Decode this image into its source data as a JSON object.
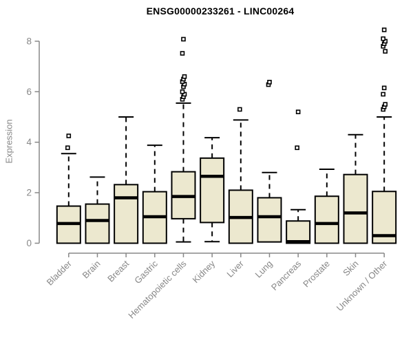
{
  "chart_data": {
    "type": "boxplot",
    "title": "ENSG00000233261 - LINC00264",
    "xlabel": "",
    "ylabel": "Expression",
    "ylim": [
      0,
      8.5
    ],
    "yticks": [
      "0",
      "2",
      "4",
      "6",
      "8"
    ],
    "grid": false,
    "legend": "none",
    "colors": {
      "box_fill": "#ece8cf",
      "box_stroke": "#000000",
      "axis": "#878787",
      "title": "#000000"
    },
    "categories": [
      "Bladder",
      "Brain",
      "Breast",
      "Gastric",
      "Hematopoietic cells",
      "Kidney",
      "Liver",
      "Lung",
      "Pancreas",
      "Prostate",
      "Skin",
      "Unknown / Other"
    ],
    "boxes": [
      {
        "category": "Bladder",
        "low": 0,
        "q1": 0,
        "median": 0.78,
        "q3": 1.47,
        "high": 3.55,
        "outliers": [
          3.78,
          4.25
        ]
      },
      {
        "category": "Brain",
        "low": 0,
        "q1": 0,
        "median": 0.9,
        "q3": 1.55,
        "high": 2.62,
        "outliers": []
      },
      {
        "category": "Breast",
        "low": 0,
        "q1": 0,
        "median": 1.8,
        "q3": 2.32,
        "high": 5.0,
        "outliers": []
      },
      {
        "category": "Gastric",
        "low": 0,
        "q1": 0,
        "median": 1.05,
        "q3": 2.04,
        "high": 3.88,
        "outliers": []
      },
      {
        "category": "Hematopoietic cells",
        "low": 0.05,
        "q1": 0.97,
        "median": 1.85,
        "q3": 2.83,
        "high": 5.55,
        "outliers": [
          5.7,
          5.8,
          5.9,
          6.0,
          6.2,
          6.3,
          6.4,
          6.5,
          6.6,
          7.52,
          8.08
        ]
      },
      {
        "category": "Kidney",
        "low": 0.06,
        "q1": 0.82,
        "median": 2.65,
        "q3": 3.37,
        "high": 4.18,
        "outliers": []
      },
      {
        "category": "Liver",
        "low": 0,
        "q1": 0,
        "median": 1.02,
        "q3": 2.1,
        "high": 4.88,
        "outliers": [
          5.3
        ]
      },
      {
        "category": "Lung",
        "low": 0.05,
        "q1": 0.05,
        "median": 1.05,
        "q3": 1.8,
        "high": 2.8,
        "outliers": [
          6.28,
          6.38
        ]
      },
      {
        "category": "Pancreas",
        "low": 0,
        "q1": 0,
        "median": 0.06,
        "q3": 0.88,
        "high": 1.33,
        "outliers": [
          3.78,
          5.2
        ]
      },
      {
        "category": "Prostate",
        "low": 0,
        "q1": 0,
        "median": 0.78,
        "q3": 1.86,
        "high": 2.93,
        "outliers": []
      },
      {
        "category": "Skin",
        "low": 0,
        "q1": 0,
        "median": 1.2,
        "q3": 2.72,
        "high": 4.3,
        "outliers": []
      },
      {
        "category": "Unknown / Other",
        "low": 0,
        "q1": 0,
        "median": 0.3,
        "q3": 2.05,
        "high": 5.0,
        "outliers": [
          5.3,
          5.4,
          5.5,
          5.9,
          6.15,
          7.6,
          7.8,
          7.9,
          8.0,
          8.1,
          8.45
        ]
      }
    ]
  }
}
